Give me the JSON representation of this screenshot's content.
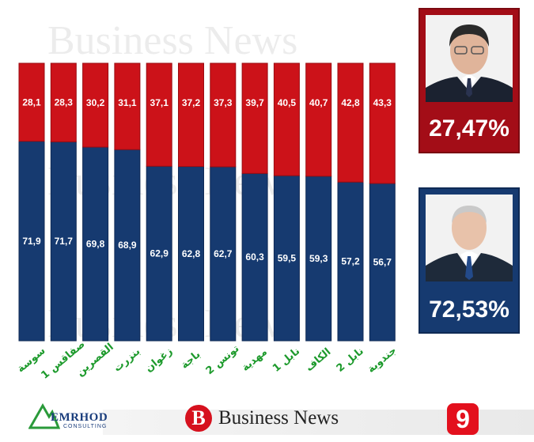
{
  "chart_data": {
    "type": "bar",
    "stacked": true,
    "categories": [
      "سوسة",
      "صفاقس 1",
      "القصرين",
      "بنزرت",
      "زغوان",
      "باجة",
      "تونس 2",
      "مهدية",
      "نابل 1",
      "الكاف",
      "نابل 2",
      "جندوبة"
    ],
    "series": [
      {
        "key": "blue",
        "color": "#163a70",
        "values": [
          71.9,
          71.7,
          69.8,
          68.9,
          62.9,
          62.8,
          62.7,
          60.3,
          59.5,
          59.3,
          57.2,
          56.7
        ],
        "labels": [
          "71,9",
          "71,7",
          "69,8",
          "68,9",
          "62,9",
          "62,8",
          "62,7",
          "60,3",
          "59,5",
          "59,3",
          "57,2",
          "56,7"
        ]
      },
      {
        "key": "red",
        "color": "#cc1219",
        "values": [
          28.1,
          28.3,
          30.2,
          31.1,
          37.1,
          37.2,
          37.3,
          39.7,
          40.5,
          40.7,
          42.8,
          43.3
        ],
        "labels": [
          "28,1",
          "28,3",
          "30,2",
          "31,1",
          "37,1",
          "37,2",
          "37,3",
          "39,7",
          "40,5",
          "40,7",
          "42,8",
          "43,3"
        ]
      }
    ],
    "ylim": [
      0,
      100
    ],
    "category_label_color": "#1d9a2c"
  },
  "candidates": {
    "red": {
      "percent": "27,47%"
    },
    "blue": {
      "percent": "72,53%"
    }
  },
  "logos": {
    "emrhod": "EMRHOD",
    "emrhod_sub": "CONSULTING",
    "business_news": "Business News",
    "business_news_mark": "B",
    "channel": "9"
  },
  "watermark": "Business News"
}
